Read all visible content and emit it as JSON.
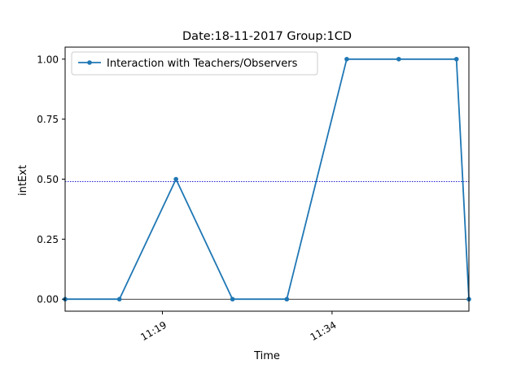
{
  "chart_data": {
    "type": "line",
    "title": "Date:18-11-2017  Group:1CD",
    "xlabel": "Time",
    "ylabel": "intExt",
    "x_tick_labels": [
      {
        "t": 19,
        "label": "11:19"
      },
      {
        "t": 34,
        "label": "11:34"
      }
    ],
    "y_ticks": [
      0.0,
      0.25,
      0.5,
      0.75,
      1.0
    ],
    "y_tick_labels": [
      "0.00",
      "0.25",
      "0.50",
      "0.75",
      "1.00"
    ],
    "xlim": [
      10.4,
      46.1
    ],
    "ylim": [
      -0.05,
      1.05
    ],
    "series": [
      {
        "name": "Interaction with Teachers/Observers",
        "color": "#1f77b4",
        "marker": "dot",
        "x": [
          10.4,
          15.2,
          20.2,
          25.2,
          30.0,
          35.3,
          39.9,
          45.0,
          46.1
        ],
        "y": [
          0.0,
          0.0,
          0.5,
          0.0,
          0.0,
          1.0,
          1.0,
          1.0,
          0.0
        ]
      }
    ],
    "reference_lines": [
      {
        "orientation": "horizontal",
        "y": 0.49,
        "style": "dotted",
        "color": "#0000cc"
      },
      {
        "orientation": "horizontal",
        "y": 0.0,
        "style": "solid",
        "color": "#000000"
      }
    ],
    "grid": false,
    "legend_position": "upper-left"
  }
}
